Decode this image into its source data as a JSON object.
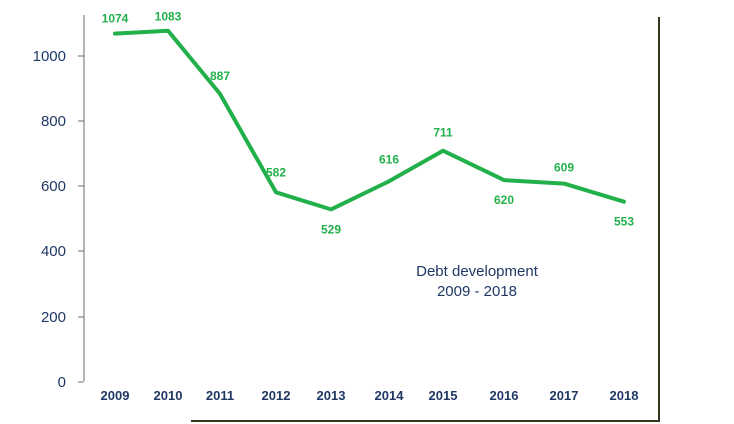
{
  "chart_data": {
    "type": "line",
    "x": [
      "2009",
      "2010",
      "2011",
      "2012",
      "2013",
      "2014",
      "2015",
      "2016",
      "2017",
      "2018"
    ],
    "series": [
      {
        "values": [
          1074,
          1083,
          887,
          582,
          529,
          616,
          711,
          620,
          609,
          553
        ]
      }
    ],
    "yticks": [
      "0",
      "200",
      "400",
      "600",
      "800",
      "1000"
    ],
    "ylim": [
      0,
      1100
    ],
    "annotation": [
      "Debt development",
      "2009 - 2018"
    ],
    "grid": false,
    "colors": {
      "line": "#22b04b",
      "labels": "#22b04b",
      "axis_text": "#1f3864",
      "frame": "#2e3b1f"
    }
  }
}
